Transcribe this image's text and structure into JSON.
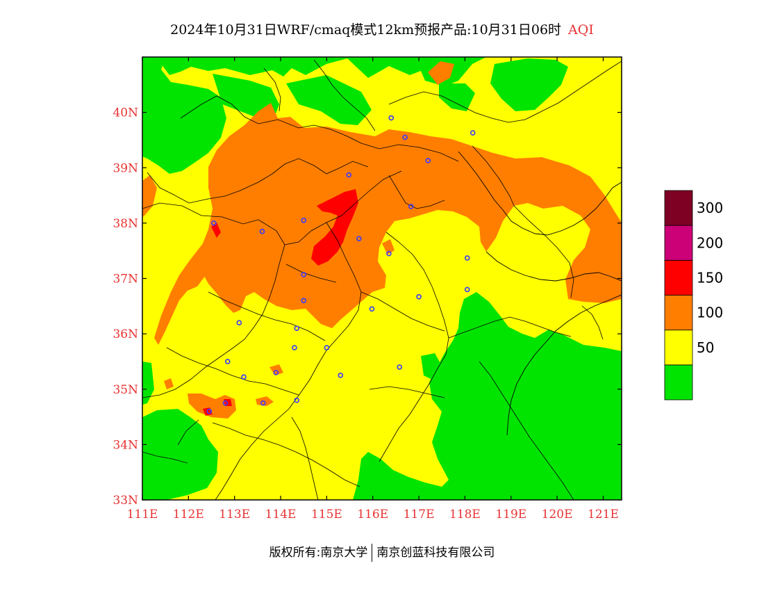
{
  "title": {
    "main": "2024年10月31日WRF/cmaq模式12km预报产品:10月31日06时",
    "variable": "AQI"
  },
  "axes": {
    "lon_labels": [
      "111E",
      "112E",
      "113E",
      "114E",
      "115E",
      "116E",
      "117E",
      "118E",
      "119E",
      "120E",
      "121E"
    ],
    "lat_labels": [
      "33N",
      "34N",
      "35N",
      "36N",
      "37N",
      "38N",
      "39N",
      "40N"
    ],
    "lon_range": [
      111,
      121.4
    ],
    "lat_range": [
      33,
      41
    ]
  },
  "legend": {
    "levels": [
      {
        "color": "#00e400",
        "lower": 0
      },
      {
        "color": "#ffff00",
        "lower": 50,
        "label": "50"
      },
      {
        "color": "#ff7e00",
        "lower": 100,
        "label": "100"
      },
      {
        "color": "#ff0000",
        "lower": 150,
        "label": "150"
      },
      {
        "color": "#cc0077",
        "lower": 200,
        "label": "200"
      },
      {
        "color": "#7e0023",
        "lower": 300,
        "label": "300"
      }
    ]
  },
  "colors": {
    "good": "#00e400",
    "moderate": "#ffff00",
    "unhealthy_sensitive": "#ff7e00",
    "unhealthy": "#ff0000",
    "station_marker": "#3a3aff",
    "tick_text": "#e83232"
  },
  "stations": [
    [
      116.4,
      39.9
    ],
    [
      116.7,
      39.55
    ],
    [
      117.2,
      39.13
    ],
    [
      118.17,
      39.63
    ],
    [
      115.48,
      38.87
    ],
    [
      116.83,
      38.3
    ],
    [
      114.5,
      38.05
    ],
    [
      112.55,
      38.0
    ],
    [
      113.6,
      37.85
    ],
    [
      115.7,
      37.72
    ],
    [
      116.35,
      37.45
    ],
    [
      114.5,
      37.07
    ],
    [
      118.05,
      37.37
    ],
    [
      117.0,
      36.67
    ],
    [
      118.05,
      36.8
    ],
    [
      114.5,
      36.6
    ],
    [
      115.98,
      36.45
    ],
    [
      113.1,
      36.2
    ],
    [
      114.35,
      36.1
    ],
    [
      115.0,
      35.75
    ],
    [
      114.3,
      35.75
    ],
    [
      112.85,
      35.5
    ],
    [
      113.2,
      35.22
    ],
    [
      113.9,
      35.3
    ],
    [
      115.3,
      35.25
    ],
    [
      116.58,
      35.4
    ],
    [
      114.35,
      34.8
    ],
    [
      112.45,
      34.6
    ],
    [
      113.62,
      34.75
    ],
    [
      112.8,
      34.75
    ]
  ],
  "copyright": {
    "owner_prefix": "版权所有:",
    "owner1": "南京大学",
    "owner2": "南京创蓝科技有限公司"
  }
}
